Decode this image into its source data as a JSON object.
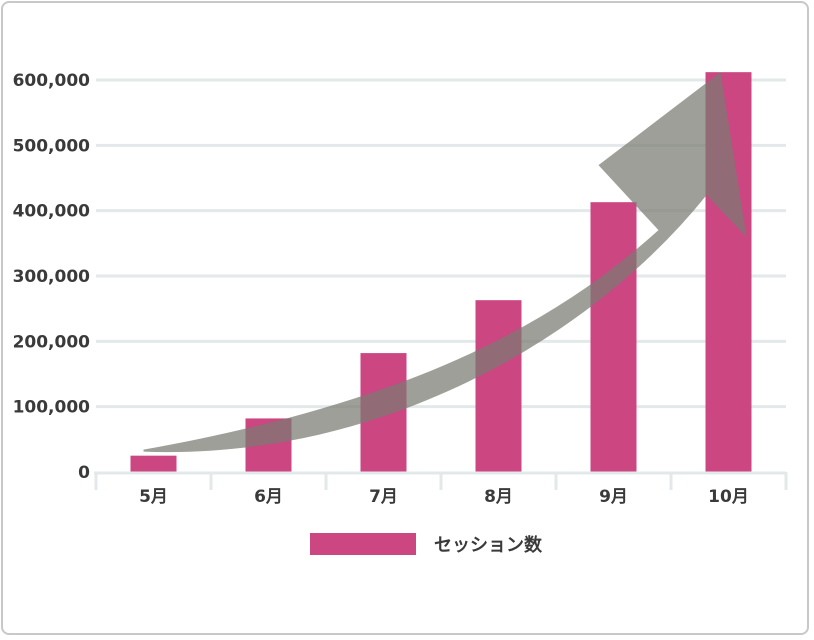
{
  "chart_data": {
    "type": "bar",
    "categories": [
      "5月",
      "6月",
      "7月",
      "8月",
      "9月",
      "10月"
    ],
    "series": [
      {
        "name": "セッション数",
        "values": [
          25000,
          82000,
          182000,
          263000,
          413000,
          612000
        ]
      }
    ],
    "y_ticks": [
      "0",
      "100,000",
      "200,000",
      "300,000",
      "400,000",
      "500,000",
      "600,000"
    ],
    "ylim": [
      0,
      600000
    ],
    "grid": true,
    "legend_position": "bottom",
    "bar_color": "#cc4682",
    "trend_arrow_color": "#7a7a72",
    "annotation": "trend-arrow"
  }
}
